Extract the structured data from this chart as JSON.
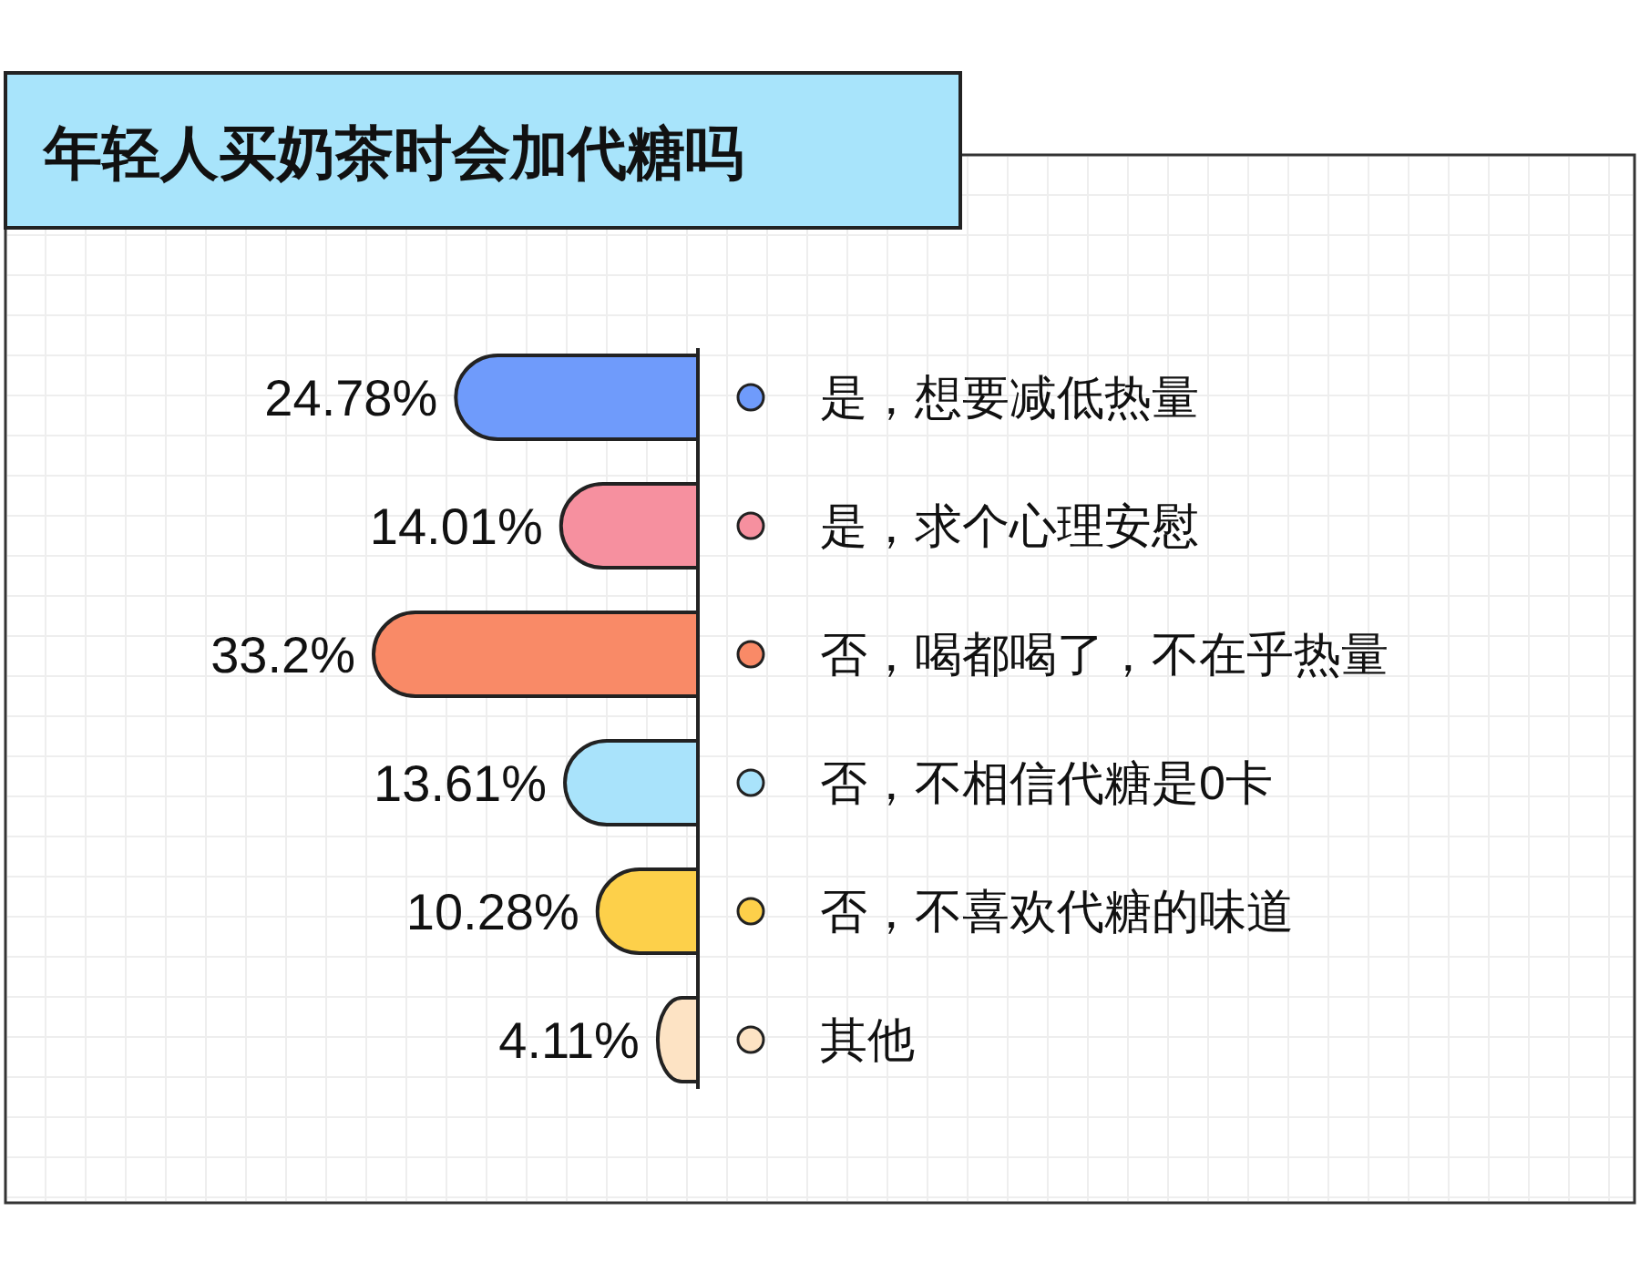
{
  "chart_data": {
    "type": "bar",
    "orientation": "horizontal",
    "title": "年轻人买奶茶时会加代糖吗",
    "categories": [
      "是，想要减低热量",
      "是，求个心理安慰",
      "否，喝都喝了，不在乎热量",
      "否，不相信代糖是0卡",
      "否，不喜欢代糖的味道",
      "其他"
    ],
    "values": [
      24.78,
      14.01,
      33.2,
      13.61,
      10.28,
      4.11
    ],
    "value_labels": [
      "24.78%",
      "14.01%",
      "33.2%",
      "13.61%",
      "10.28%",
      "4.11%"
    ],
    "grid": true,
    "colors": [
      "#6f9bfb",
      "#f6909f",
      "#f98a67",
      "#a9e3fb",
      "#fdd04a",
      "#fde3c4"
    ]
  }
}
